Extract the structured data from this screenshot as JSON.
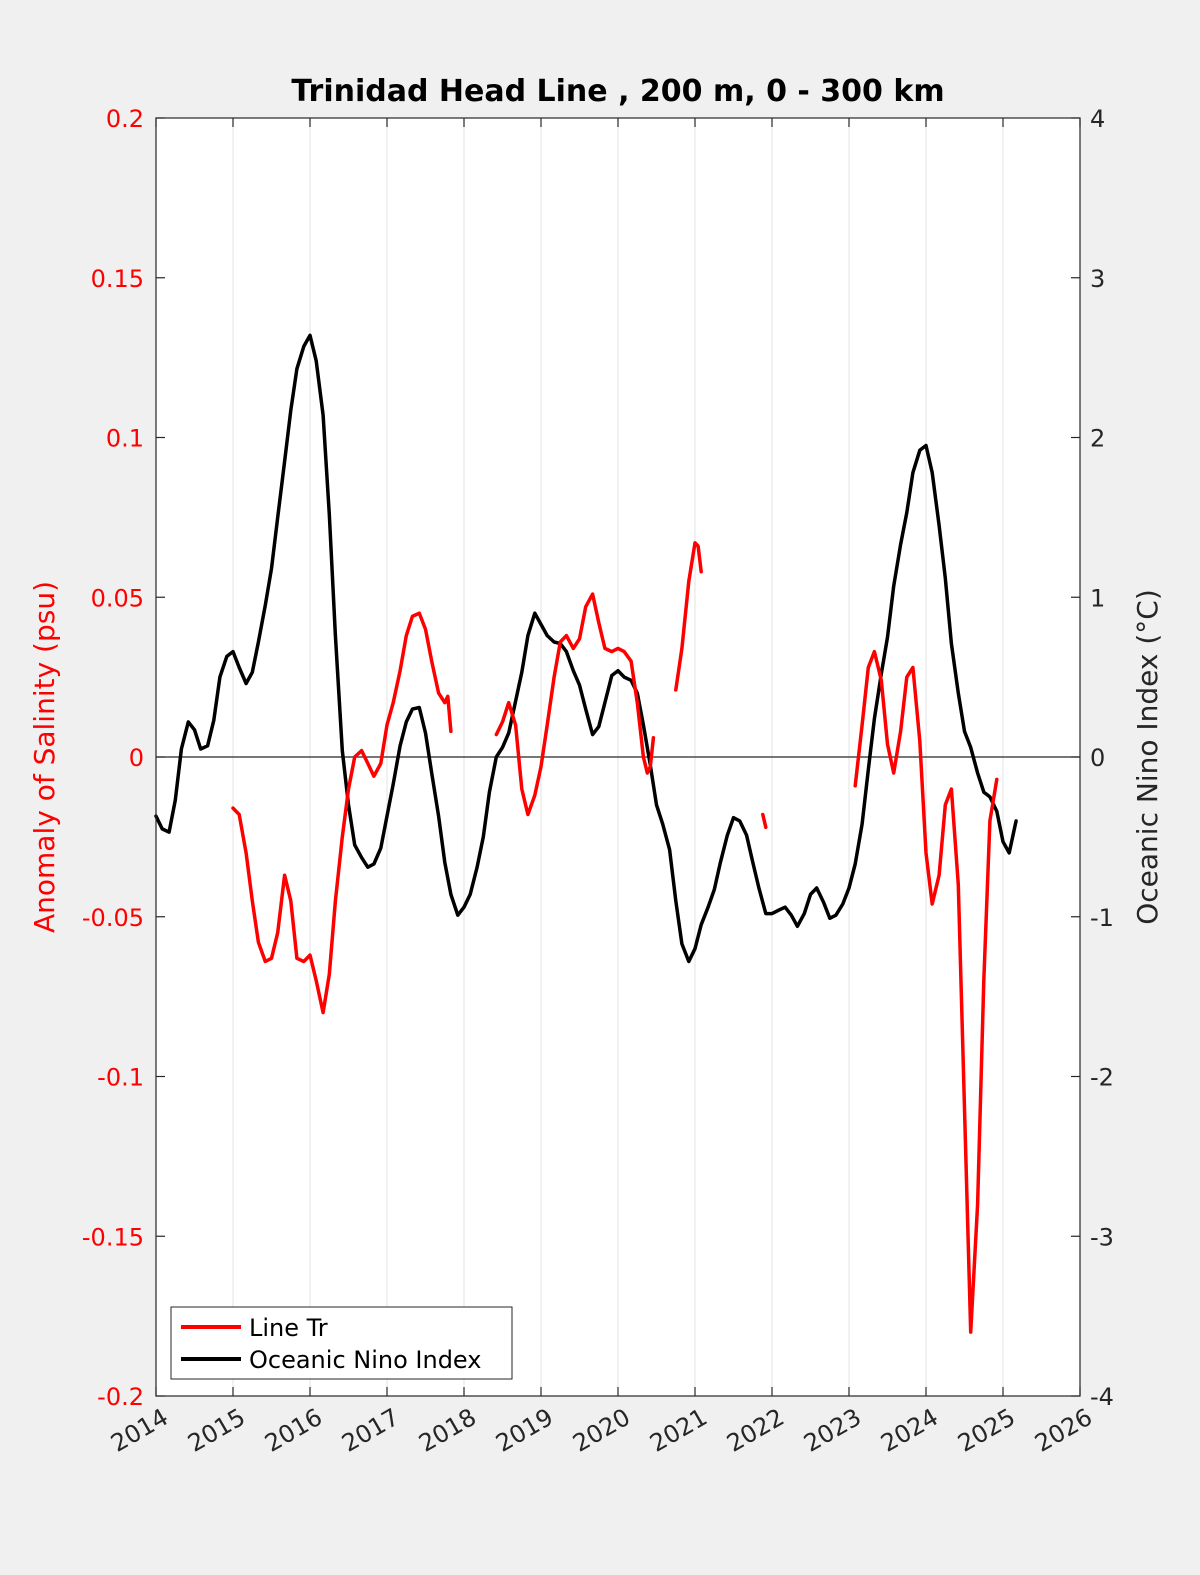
{
  "chart_data": {
    "type": "line",
    "title": "Trinidad Head Line , 200 m, 0 - 300 km",
    "ylabel_left": "Anomaly of Salinity (psu)",
    "ylabel_right": "Oceanic Nino Index (°C)",
    "xlim": [
      2014,
      2026
    ],
    "ylim_left": [
      -0.2,
      0.2
    ],
    "ylim_right": [
      -4,
      4
    ],
    "x_ticks": [
      "2014",
      "2015",
      "2016",
      "2017",
      "2018",
      "2019",
      "2020",
      "2021",
      "2022",
      "2023",
      "2024",
      "2025",
      "2026"
    ],
    "y_ticks_left": [
      "0.2",
      "0.15",
      "0.1",
      "0.05",
      "0",
      "-0.05",
      "-0.1",
      "-0.15",
      "-0.2"
    ],
    "y_ticks_right": [
      "4",
      "3",
      "2",
      "1",
      "0",
      "-1",
      "-2",
      "-3",
      "-4"
    ],
    "grid": "vertical",
    "zero_line": true,
    "legend_position": "bottom-left",
    "colors": {
      "line_tr": "#ff0000",
      "oni": "#000000",
      "background": "#f0f0f0",
      "plot_bg": "#ffffff"
    },
    "series": [
      {
        "name": "Line Tr",
        "axis": "left",
        "segments": [
          [
            [
              2015.0,
              -0.016
            ],
            [
              2015.08,
              -0.018
            ],
            [
              2015.17,
              -0.03
            ],
            [
              2015.25,
              -0.045
            ],
            [
              2015.33,
              -0.058
            ],
            [
              2015.42,
              -0.064
            ],
            [
              2015.5,
              -0.063
            ],
            [
              2015.58,
              -0.055
            ],
            [
              2015.67,
              -0.037
            ],
            [
              2015.75,
              -0.045
            ],
            [
              2015.83,
              -0.063
            ],
            [
              2015.92,
              -0.064
            ],
            [
              2016.0,
              -0.062
            ],
            [
              2016.08,
              -0.07
            ],
            [
              2016.17,
              -0.08
            ],
            [
              2016.25,
              -0.068
            ],
            [
              2016.33,
              -0.045
            ],
            [
              2016.42,
              -0.025
            ],
            [
              2016.5,
              -0.01
            ],
            [
              2016.58,
              0.0
            ],
            [
              2016.67,
              0.002
            ],
            [
              2016.75,
              -0.002
            ],
            [
              2016.83,
              -0.006
            ],
            [
              2016.92,
              -0.002
            ],
            [
              2017.0,
              0.01
            ],
            [
              2017.08,
              0.017
            ],
            [
              2017.17,
              0.027
            ],
            [
              2017.25,
              0.038
            ],
            [
              2017.33,
              0.044
            ],
            [
              2017.42,
              0.045
            ],
            [
              2017.5,
              0.04
            ],
            [
              2017.58,
              0.03
            ],
            [
              2017.67,
              0.02
            ],
            [
              2017.75,
              0.017
            ],
            [
              2017.79,
              0.019
            ],
            [
              2017.83,
              0.008
            ]
          ],
          [
            [
              2018.42,
              0.007
            ],
            [
              2018.5,
              0.011
            ],
            [
              2018.58,
              0.017
            ],
            [
              2018.67,
              0.01
            ],
            [
              2018.75,
              -0.01
            ],
            [
              2018.83,
              -0.018
            ],
            [
              2018.92,
              -0.012
            ],
            [
              2019.0,
              -0.003
            ],
            [
              2019.08,
              0.01
            ],
            [
              2019.17,
              0.025
            ],
            [
              2019.25,
              0.036
            ],
            [
              2019.33,
              0.038
            ],
            [
              2019.42,
              0.034
            ],
            [
              2019.5,
              0.037
            ],
            [
              2019.58,
              0.047
            ],
            [
              2019.67,
              0.051
            ],
            [
              2019.75,
              0.042
            ],
            [
              2019.83,
              0.034
            ],
            [
              2019.92,
              0.033
            ],
            [
              2020.0,
              0.034
            ],
            [
              2020.08,
              0.033
            ],
            [
              2020.17,
              0.03
            ],
            [
              2020.25,
              0.017
            ],
            [
              2020.33,
              0.0
            ],
            [
              2020.38,
              -0.005
            ],
            [
              2020.42,
              -0.003
            ],
            [
              2020.46,
              0.006
            ]
          ],
          [
            [
              2020.75,
              0.021
            ],
            [
              2020.83,
              0.034
            ],
            [
              2020.92,
              0.055
            ],
            [
              2021.0,
              0.067
            ],
            [
              2021.04,
              0.066
            ],
            [
              2021.08,
              0.058
            ]
          ],
          [
            [
              2021.88,
              -0.018
            ],
            [
              2021.92,
              -0.022
            ]
          ],
          [
            [
              2023.08,
              -0.009
            ],
            [
              2023.17,
              0.01
            ],
            [
              2023.25,
              0.028
            ],
            [
              2023.33,
              0.033
            ],
            [
              2023.42,
              0.024
            ],
            [
              2023.5,
              0.004
            ],
            [
              2023.58,
              -0.005
            ],
            [
              2023.67,
              0.008
            ],
            [
              2023.75,
              0.025
            ],
            [
              2023.83,
              0.028
            ],
            [
              2023.92,
              0.005
            ],
            [
              2024.0,
              -0.03
            ],
            [
              2024.08,
              -0.046
            ],
            [
              2024.17,
              -0.037
            ],
            [
              2024.25,
              -0.015
            ],
            [
              2024.33,
              -0.01
            ],
            [
              2024.42,
              -0.04
            ],
            [
              2024.5,
              -0.11
            ],
            [
              2024.58,
              -0.18
            ],
            [
              2024.67,
              -0.14
            ],
            [
              2024.75,
              -0.07
            ],
            [
              2024.83,
              -0.02
            ],
            [
              2024.92,
              -0.007
            ]
          ]
        ]
      },
      {
        "name": "Oceanic Nino Index",
        "axis": "right",
        "segments": [
          [
            [
              2014.0,
              -0.37
            ],
            [
              2014.08,
              -0.45
            ],
            [
              2014.17,
              -0.47
            ],
            [
              2014.25,
              -0.27
            ],
            [
              2014.33,
              0.05
            ],
            [
              2014.42,
              0.22
            ],
            [
              2014.5,
              0.17
            ],
            [
              2014.58,
              0.05
            ],
            [
              2014.67,
              0.07
            ],
            [
              2014.75,
              0.23
            ],
            [
              2014.83,
              0.5
            ],
            [
              2014.92,
              0.63
            ],
            [
              2015.0,
              0.66
            ],
            [
              2015.08,
              0.56
            ],
            [
              2015.17,
              0.46
            ],
            [
              2015.25,
              0.53
            ],
            [
              2015.33,
              0.72
            ],
            [
              2015.42,
              0.95
            ],
            [
              2015.5,
              1.18
            ],
            [
              2015.58,
              1.5
            ],
            [
              2015.67,
              1.85
            ],
            [
              2015.75,
              2.17
            ],
            [
              2015.83,
              2.43
            ],
            [
              2015.92,
              2.57
            ],
            [
              2016.0,
              2.64
            ],
            [
              2016.08,
              2.48
            ],
            [
              2016.17,
              2.14
            ],
            [
              2016.25,
              1.52
            ],
            [
              2016.33,
              0.76
            ],
            [
              2016.42,
              0.04
            ],
            [
              2016.5,
              -0.3
            ],
            [
              2016.58,
              -0.55
            ],
            [
              2016.67,
              -0.63
            ],
            [
              2016.75,
              -0.69
            ],
            [
              2016.83,
              -0.67
            ],
            [
              2016.92,
              -0.57
            ],
            [
              2017.0,
              -0.37
            ],
            [
              2017.08,
              -0.17
            ],
            [
              2017.17,
              0.07
            ],
            [
              2017.25,
              0.22
            ],
            [
              2017.33,
              0.3
            ],
            [
              2017.42,
              0.31
            ],
            [
              2017.5,
              0.15
            ],
            [
              2017.58,
              -0.1
            ],
            [
              2017.67,
              -0.37
            ],
            [
              2017.75,
              -0.66
            ],
            [
              2017.83,
              -0.86
            ],
            [
              2017.92,
              -0.99
            ],
            [
              2018.0,
              -0.94
            ],
            [
              2018.08,
              -0.86
            ],
            [
              2018.17,
              -0.69
            ],
            [
              2018.25,
              -0.5
            ],
            [
              2018.33,
              -0.22
            ],
            [
              2018.42,
              0.0
            ],
            [
              2018.5,
              0.06
            ],
            [
              2018.58,
              0.15
            ],
            [
              2018.67,
              0.35
            ],
            [
              2018.75,
              0.53
            ],
            [
              2018.83,
              0.76
            ],
            [
              2018.92,
              0.9
            ],
            [
              2019.0,
              0.83
            ],
            [
              2019.08,
              0.76
            ],
            [
              2019.17,
              0.72
            ],
            [
              2019.25,
              0.71
            ],
            [
              2019.33,
              0.66
            ],
            [
              2019.42,
              0.54
            ],
            [
              2019.5,
              0.45
            ],
            [
              2019.58,
              0.3
            ],
            [
              2019.67,
              0.14
            ],
            [
              2019.75,
              0.19
            ],
            [
              2019.83,
              0.34
            ],
            [
              2019.92,
              0.51
            ],
            [
              2020.0,
              0.54
            ],
            [
              2020.08,
              0.5
            ],
            [
              2020.17,
              0.48
            ],
            [
              2020.25,
              0.4
            ],
            [
              2020.33,
              0.2
            ],
            [
              2020.42,
              -0.05
            ],
            [
              2020.5,
              -0.3
            ],
            [
              2020.58,
              -0.42
            ],
            [
              2020.67,
              -0.58
            ],
            [
              2020.75,
              -0.9
            ],
            [
              2020.83,
              -1.17
            ],
            [
              2020.92,
              -1.28
            ],
            [
              2021.0,
              -1.2
            ],
            [
              2021.08,
              -1.05
            ],
            [
              2021.17,
              -0.94
            ],
            [
              2021.25,
              -0.83
            ],
            [
              2021.33,
              -0.66
            ],
            [
              2021.42,
              -0.49
            ],
            [
              2021.5,
              -0.38
            ],
            [
              2021.58,
              -0.4
            ],
            [
              2021.67,
              -0.49
            ],
            [
              2021.75,
              -0.66
            ],
            [
              2021.83,
              -0.82
            ],
            [
              2021.92,
              -0.98
            ],
            [
              2022.0,
              -0.98
            ],
            [
              2022.08,
              -0.96
            ],
            [
              2022.17,
              -0.94
            ],
            [
              2022.25,
              -0.99
            ],
            [
              2022.33,
              -1.06
            ],
            [
              2022.42,
              -0.98
            ],
            [
              2022.5,
              -0.86
            ],
            [
              2022.58,
              -0.82
            ],
            [
              2022.67,
              -0.91
            ],
            [
              2022.75,
              -1.01
            ],
            [
              2022.83,
              -0.99
            ],
            [
              2022.92,
              -0.92
            ],
            [
              2023.0,
              -0.82
            ],
            [
              2023.08,
              -0.67
            ],
            [
              2023.17,
              -0.42
            ],
            [
              2023.25,
              -0.08
            ],
            [
              2023.33,
              0.24
            ],
            [
              2023.42,
              0.52
            ],
            [
              2023.5,
              0.75
            ],
            [
              2023.58,
              1.07
            ],
            [
              2023.67,
              1.33
            ],
            [
              2023.75,
              1.53
            ],
            [
              2023.83,
              1.78
            ],
            [
              2023.92,
              1.92
            ],
            [
              2024.0,
              1.95
            ],
            [
              2024.08,
              1.78
            ],
            [
              2024.17,
              1.45
            ],
            [
              2024.25,
              1.12
            ],
            [
              2024.33,
              0.71
            ],
            [
              2024.42,
              0.4
            ],
            [
              2024.5,
              0.16
            ],
            [
              2024.58,
              0.06
            ],
            [
              2024.67,
              -0.1
            ],
            [
              2024.75,
              -0.22
            ],
            [
              2024.83,
              -0.25
            ],
            [
              2024.92,
              -0.34
            ],
            [
              2025.0,
              -0.53
            ],
            [
              2025.08,
              -0.6
            ],
            [
              2025.17,
              -0.4
            ]
          ]
        ]
      }
    ]
  }
}
